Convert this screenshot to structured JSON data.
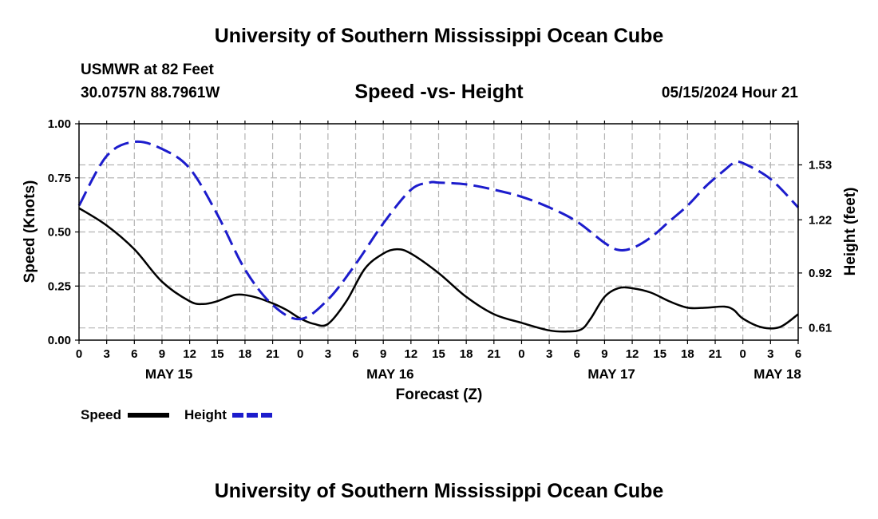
{
  "header": {
    "title": "University of Southern Mississippi Ocean Cube",
    "station": "USMWR at 82 Feet",
    "coords": "30.0757N  88.7961W",
    "chart_title": "Speed -vs- Height",
    "datetime": "05/15/2024 Hour 21"
  },
  "footer": {
    "title": "University of Southern Mississippi Ocean Cube"
  },
  "legend": {
    "speed_label": "Speed",
    "height_label": "Height"
  },
  "colors": {
    "speed": "#000000",
    "height": "#1c1ccc",
    "grid": "#b4b4b4"
  },
  "chart_data": {
    "type": "line",
    "title": "Speed -vs- Height",
    "xlabel": "Forecast (Z)",
    "ylabel": "Speed (Knots)",
    "y2label": "Height (feet)",
    "xlim": [
      0,
      78
    ],
    "ylim": [
      0,
      1
    ],
    "y2lim": [
      0.541,
      1.762
    ],
    "x_ticks": [
      "0",
      "3",
      "6",
      "9",
      "12",
      "15",
      "18",
      "21",
      "0",
      "3",
      "6",
      "9",
      "12",
      "15",
      "18",
      "21",
      "0",
      "3",
      "6",
      "9",
      "12",
      "15",
      "18",
      "21",
      "0",
      "3",
      "6"
    ],
    "y_ticks": [
      "0.00",
      "0.25",
      "0.50",
      "0.75",
      "1.00"
    ],
    "y2_ticks": [
      "0.61",
      "0.92",
      "1.22",
      "1.53"
    ],
    "date_labels": [
      {
        "label": "MAY 15",
        "hour": 9.75
      },
      {
        "label": "MAY 16",
        "hour": 33.75
      },
      {
        "label": "MAY 17",
        "hour": 57.75
      },
      {
        "label": "MAY 18",
        "hour": 75.75
      }
    ],
    "series": [
      {
        "name": "Speed",
        "axis": "left",
        "style": "solid",
        "x": [
          0,
          3,
          6,
          9,
          12,
          13.5,
          15,
          17,
          19,
          21,
          22.5,
          24,
          25.5,
          27,
          29,
          31,
          33,
          34.5,
          36,
          39,
          42,
          45,
          48,
          51,
          53,
          54.5,
          55.5,
          57,
          58.5,
          60,
          62,
          64,
          66,
          68,
          70,
          71,
          72,
          74,
          76,
          78
        ],
        "values": [
          0.61,
          0.53,
          0.42,
          0.27,
          0.18,
          0.167,
          0.18,
          0.21,
          0.2,
          0.17,
          0.14,
          0.1,
          0.075,
          0.075,
          0.18,
          0.33,
          0.4,
          0.42,
          0.4,
          0.31,
          0.2,
          0.12,
          0.08,
          0.045,
          0.04,
          0.05,
          0.1,
          0.2,
          0.24,
          0.24,
          0.22,
          0.18,
          0.15,
          0.15,
          0.155,
          0.14,
          0.1,
          0.06,
          0.06,
          0.12
        ]
      },
      {
        "name": "Height",
        "axis": "right",
        "style": "dashed",
        "x": [
          0,
          3,
          6,
          9,
          12,
          15,
          18,
          21,
          24,
          27,
          30,
          33,
          36,
          38,
          39,
          42,
          45,
          48,
          51,
          54,
          57,
          58.5,
          60,
          62,
          64,
          66,
          68,
          70,
          71,
          72,
          75,
          78
        ],
        "values": [
          1.3,
          1.58,
          1.66,
          1.62,
          1.51,
          1.25,
          0.94,
          0.74,
          0.66,
          0.77,
          0.97,
          1.2,
          1.39,
          1.43,
          1.43,
          1.42,
          1.39,
          1.35,
          1.29,
          1.21,
          1.09,
          1.05,
          1.06,
          1.12,
          1.21,
          1.3,
          1.41,
          1.5,
          1.54,
          1.54,
          1.45,
          1.29
        ]
      }
    ]
  }
}
